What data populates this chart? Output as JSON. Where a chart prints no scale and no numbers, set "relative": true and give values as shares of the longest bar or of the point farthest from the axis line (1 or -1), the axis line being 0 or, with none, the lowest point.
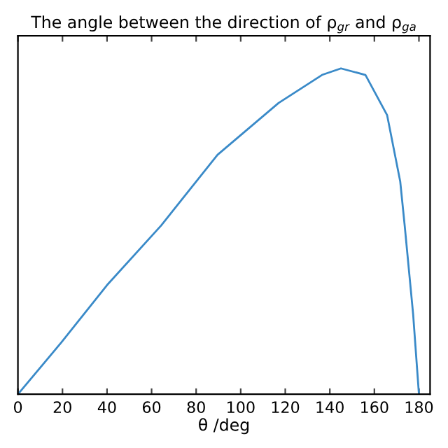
{
  "chart_data": {
    "type": "line",
    "title": "The angle between the direction of ρ$_{gr}$ and ρ$_{ga}$",
    "xlabel": "θ /deg",
    "relative": true,
    "x": [
      0,
      19.5,
      40,
      64.3,
      89.6,
      117,
      136.5,
      145,
      156,
      165.7,
      171.6,
      173.6,
      177.4,
      180
    ],
    "series": [
      {
        "color": "#3a8ac8",
        "values": [
          0,
          0.159,
          0.335,
          0.518,
          0.735,
          0.894,
          0.98,
          1.0,
          0.98,
          0.857,
          0.653,
          0.518,
          0.245,
          0
        ]
      }
    ],
    "xlim": [
      0,
      185
    ],
    "xticks": [
      0,
      20,
      40,
      60,
      80,
      100,
      120,
      140,
      160,
      180
    ],
    "grid": false,
    "legend": false
  }
}
